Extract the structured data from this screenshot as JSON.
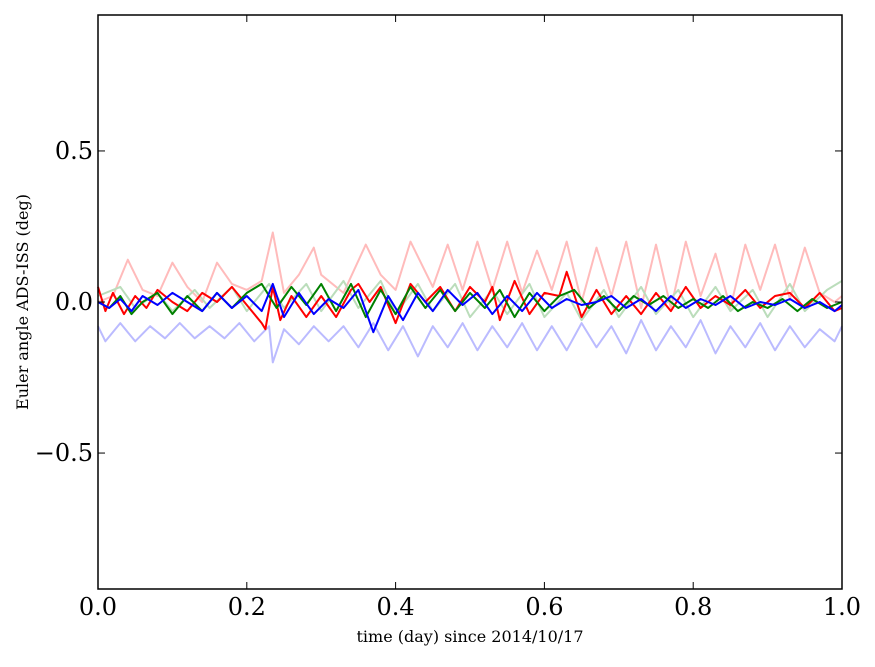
{
  "chart_data": {
    "type": "line",
    "title": "",
    "xlabel": "time (day) since 2014/10/17",
    "ylabel": "Euler angle ADS-ISS (deg)",
    "xlim": [
      0.0,
      1.0
    ],
    "ylim": [
      -0.95,
      0.95
    ],
    "grid": false,
    "legend": "none",
    "x_ticks": [
      {
        "value": 0.0,
        "label": "0.0"
      },
      {
        "value": 0.2,
        "label": "0.2"
      },
      {
        "value": 0.4,
        "label": "0.4"
      },
      {
        "value": 0.6,
        "label": "0.6"
      },
      {
        "value": 0.8,
        "label": "0.8"
      },
      {
        "value": 1.0,
        "label": "1.0"
      }
    ],
    "y_ticks": [
      {
        "value": -0.5,
        "label": "−0.5"
      },
      {
        "value": 0.0,
        "label": "0.0"
      },
      {
        "value": 0.5,
        "label": "0.5"
      }
    ],
    "series": [
      {
        "color": "#ffbbbb",
        "x": [
          0.0,
          0.02,
          0.04,
          0.06,
          0.08,
          0.1,
          0.12,
          0.14,
          0.16,
          0.18,
          0.2,
          0.22,
          0.235,
          0.25,
          0.27,
          0.29,
          0.3,
          0.33,
          0.36,
          0.38,
          0.4,
          0.42,
          0.45,
          0.47,
          0.49,
          0.51,
          0.53,
          0.55,
          0.57,
          0.59,
          0.61,
          0.63,
          0.65,
          0.67,
          0.69,
          0.71,
          0.73,
          0.75,
          0.77,
          0.79,
          0.81,
          0.83,
          0.85,
          0.87,
          0.89,
          0.91,
          0.93,
          0.95,
          0.97,
          0.99,
          1.0
        ],
        "y": [
          0.0,
          0.02,
          0.14,
          0.04,
          0.02,
          0.13,
          0.05,
          0.0,
          0.13,
          0.06,
          0.04,
          0.07,
          0.23,
          0.03,
          0.09,
          0.18,
          0.09,
          0.03,
          0.19,
          0.09,
          0.04,
          0.2,
          0.05,
          0.19,
          0.04,
          0.2,
          0.04,
          0.2,
          0.03,
          0.17,
          0.04,
          0.2,
          0.0,
          0.18,
          0.02,
          0.2,
          -0.02,
          0.19,
          -0.02,
          0.2,
          0.02,
          0.16,
          -0.02,
          0.19,
          0.04,
          0.19,
          0.01,
          0.18,
          0.03,
          0.0,
          0.02
        ]
      },
      {
        "color": "#bbddbb",
        "x": [
          0.0,
          0.03,
          0.05,
          0.08,
          0.1,
          0.13,
          0.15,
          0.18,
          0.2,
          0.23,
          0.25,
          0.28,
          0.3,
          0.33,
          0.35,
          0.38,
          0.4,
          0.43,
          0.45,
          0.48,
          0.5,
          0.53,
          0.55,
          0.58,
          0.6,
          0.63,
          0.65,
          0.68,
          0.7,
          0.73,
          0.75,
          0.78,
          0.8,
          0.83,
          0.85,
          0.88,
          0.9,
          0.93,
          0.95,
          0.98,
          1.0
        ],
        "y": [
          0.02,
          0.05,
          -0.02,
          0.03,
          -0.03,
          0.04,
          -0.02,
          0.05,
          -0.03,
          0.06,
          -0.02,
          0.06,
          -0.03,
          0.07,
          -0.02,
          0.07,
          -0.04,
          0.06,
          -0.03,
          0.06,
          -0.05,
          0.04,
          -0.04,
          0.06,
          -0.05,
          0.03,
          -0.06,
          0.04,
          -0.05,
          0.05,
          -0.04,
          0.04,
          -0.05,
          0.05,
          -0.03,
          0.04,
          -0.05,
          0.06,
          -0.03,
          0.04,
          0.07
        ]
      },
      {
        "color": "#bbbbff",
        "x": [
          0.0,
          0.01,
          0.03,
          0.05,
          0.07,
          0.09,
          0.11,
          0.13,
          0.15,
          0.17,
          0.19,
          0.21,
          0.23,
          0.235,
          0.25,
          0.27,
          0.29,
          0.31,
          0.33,
          0.35,
          0.37,
          0.39,
          0.41,
          0.43,
          0.45,
          0.47,
          0.49,
          0.51,
          0.53,
          0.55,
          0.57,
          0.59,
          0.61,
          0.63,
          0.65,
          0.67,
          0.69,
          0.71,
          0.73,
          0.75,
          0.77,
          0.79,
          0.81,
          0.83,
          0.85,
          0.87,
          0.89,
          0.91,
          0.93,
          0.95,
          0.97,
          0.99,
          1.0
        ],
        "y": [
          -0.08,
          -0.13,
          -0.07,
          -0.13,
          -0.08,
          -0.12,
          -0.07,
          -0.12,
          -0.08,
          -0.12,
          -0.07,
          -0.13,
          -0.08,
          -0.2,
          -0.09,
          -0.14,
          -0.08,
          -0.13,
          -0.08,
          -0.15,
          -0.07,
          -0.16,
          -0.08,
          -0.18,
          -0.08,
          -0.15,
          -0.07,
          -0.16,
          -0.08,
          -0.15,
          -0.07,
          -0.16,
          -0.08,
          -0.16,
          -0.07,
          -0.15,
          -0.08,
          -0.17,
          -0.06,
          -0.16,
          -0.08,
          -0.15,
          -0.06,
          -0.17,
          -0.08,
          -0.15,
          -0.07,
          -0.16,
          -0.08,
          -0.15,
          -0.09,
          -0.13,
          -0.08
        ]
      },
      {
        "color": "#ff0000",
        "x": [
          0.0,
          0.01,
          0.02,
          0.035,
          0.05,
          0.065,
          0.08,
          0.1,
          0.12,
          0.14,
          0.16,
          0.18,
          0.2,
          0.22,
          0.225,
          0.235,
          0.245,
          0.26,
          0.28,
          0.3,
          0.32,
          0.34,
          0.35,
          0.365,
          0.38,
          0.4,
          0.42,
          0.44,
          0.46,
          0.48,
          0.5,
          0.52,
          0.53,
          0.54,
          0.56,
          0.58,
          0.6,
          0.62,
          0.63,
          0.65,
          0.67,
          0.69,
          0.71,
          0.73,
          0.75,
          0.77,
          0.79,
          0.81,
          0.83,
          0.85,
          0.87,
          0.89,
          0.91,
          0.93,
          0.95,
          0.97,
          0.99,
          1.0
        ],
        "y": [
          0.05,
          -0.03,
          0.03,
          -0.04,
          0.02,
          -0.02,
          0.04,
          0.0,
          -0.03,
          0.03,
          0.0,
          0.05,
          -0.01,
          -0.07,
          -0.09,
          0.05,
          -0.06,
          0.02,
          -0.05,
          0.02,
          -0.05,
          0.04,
          0.06,
          0.0,
          0.05,
          -0.07,
          0.06,
          0.0,
          0.05,
          -0.03,
          0.05,
          0.0,
          0.05,
          -0.06,
          0.07,
          -0.04,
          0.03,
          0.02,
          0.1,
          -0.05,
          0.04,
          -0.04,
          0.02,
          -0.04,
          0.03,
          -0.03,
          0.05,
          -0.02,
          0.02,
          -0.01,
          0.04,
          -0.02,
          0.02,
          0.03,
          -0.02,
          0.03,
          -0.03,
          -0.02
        ]
      },
      {
        "color": "#008000",
        "x": [
          0.0,
          0.015,
          0.03,
          0.045,
          0.06,
          0.08,
          0.1,
          0.12,
          0.14,
          0.16,
          0.18,
          0.2,
          0.22,
          0.24,
          0.26,
          0.28,
          0.3,
          0.32,
          0.34,
          0.36,
          0.38,
          0.4,
          0.42,
          0.44,
          0.46,
          0.48,
          0.5,
          0.52,
          0.54,
          0.56,
          0.58,
          0.6,
          0.62,
          0.64,
          0.66,
          0.68,
          0.7,
          0.72,
          0.74,
          0.76,
          0.78,
          0.8,
          0.82,
          0.84,
          0.86,
          0.88,
          0.9,
          0.92,
          0.94,
          0.96,
          0.98,
          1.0
        ],
        "y": [
          0.0,
          -0.02,
          0.02,
          -0.04,
          0.0,
          0.03,
          -0.04,
          0.02,
          -0.03,
          0.03,
          -0.02,
          0.03,
          0.06,
          -0.02,
          0.05,
          -0.01,
          0.06,
          -0.03,
          0.06,
          -0.05,
          0.04,
          -0.04,
          0.05,
          -0.02,
          0.04,
          -0.03,
          0.03,
          -0.02,
          0.04,
          -0.05,
          0.03,
          -0.03,
          0.02,
          0.04,
          -0.02,
          0.02,
          -0.03,
          0.02,
          -0.01,
          0.02,
          -0.02,
          0.01,
          -0.02,
          0.02,
          -0.03,
          0.0,
          -0.02,
          0.01,
          -0.03,
          0.01,
          -0.02,
          0.0
        ]
      },
      {
        "color": "#0000ff",
        "x": [
          0.0,
          0.015,
          0.03,
          0.045,
          0.06,
          0.08,
          0.1,
          0.12,
          0.14,
          0.16,
          0.18,
          0.2,
          0.22,
          0.235,
          0.25,
          0.27,
          0.29,
          0.31,
          0.33,
          0.35,
          0.37,
          0.39,
          0.41,
          0.43,
          0.45,
          0.47,
          0.49,
          0.51,
          0.53,
          0.55,
          0.57,
          0.59,
          0.61,
          0.63,
          0.65,
          0.67,
          0.69,
          0.71,
          0.73,
          0.75,
          0.77,
          0.79,
          0.81,
          0.83,
          0.85,
          0.87,
          0.89,
          0.91,
          0.93,
          0.95,
          0.97,
          0.99,
          1.0
        ],
        "y": [
          0.0,
          -0.02,
          0.01,
          -0.03,
          0.02,
          -0.01,
          0.03,
          0.0,
          -0.03,
          0.03,
          -0.02,
          0.02,
          -0.03,
          0.06,
          -0.05,
          0.03,
          -0.04,
          0.01,
          -0.02,
          0.04,
          -0.1,
          0.02,
          -0.06,
          0.03,
          -0.03,
          0.04,
          -0.01,
          0.03,
          -0.04,
          0.02,
          -0.03,
          0.03,
          -0.02,
          0.01,
          -0.01,
          0.0,
          0.02,
          -0.02,
          0.01,
          -0.03,
          0.02,
          -0.02,
          0.01,
          -0.01,
          0.02,
          -0.02,
          0.0,
          -0.01,
          0.01,
          -0.02,
          0.0,
          -0.03,
          -0.01
        ]
      }
    ]
  }
}
